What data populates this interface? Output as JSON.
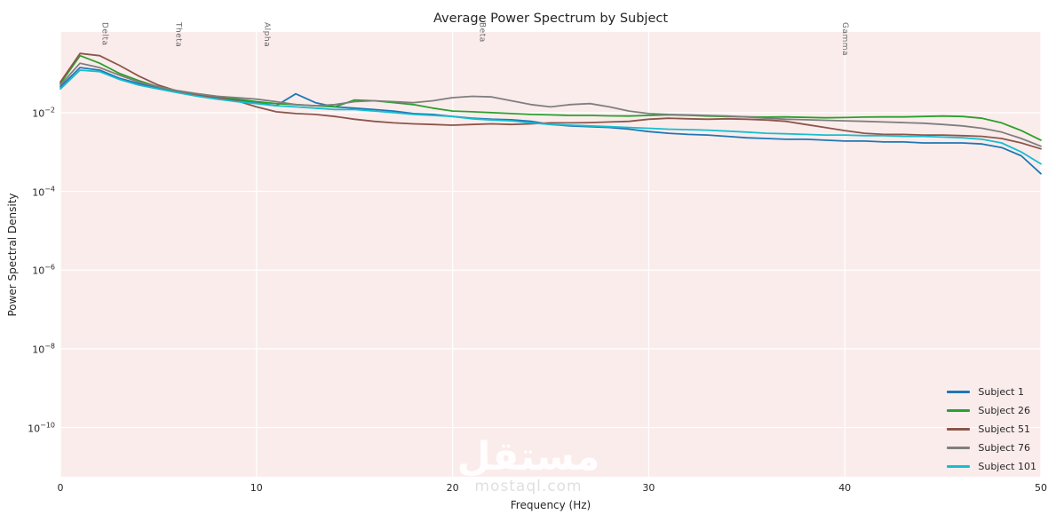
{
  "watermark": {
    "text": "مستقل",
    "subtext": "mostaql.com"
  },
  "colors": {
    "plot_bg": "#fbecec",
    "grid": "#ffffff",
    "text": "#262626",
    "annotation_text": "#666666"
  },
  "chart_data": {
    "type": "line",
    "title": "Average Power Spectrum by Subject",
    "xlabel": "Frequency (Hz)",
    "ylabel": "Power Spectral Density",
    "grid": true,
    "legend_position": "lower right",
    "xlim": [
      0,
      50
    ],
    "ylim_log10": [
      -11.25,
      0.05
    ],
    "x_ticks": [
      0,
      10,
      20,
      30,
      40,
      50
    ],
    "y_tick_exponents": [
      -2,
      -4,
      -6,
      -8,
      -10
    ],
    "band_annotations": [
      {
        "label": "Delta",
        "freq": 2.25
      },
      {
        "label": "Theta",
        "freq": 6
      },
      {
        "label": "Alpha",
        "freq": 10.5
      },
      {
        "label": "Beta",
        "freq": 21.5
      },
      {
        "label": "Gamma",
        "freq": 40
      }
    ],
    "x": [
      0,
      1,
      2,
      3,
      4,
      5,
      6,
      7,
      8,
      9,
      10,
      11,
      12,
      13,
      14,
      15,
      16,
      17,
      18,
      19,
      20,
      21,
      22,
      23,
      24,
      25,
      26,
      27,
      28,
      29,
      30,
      31,
      32,
      33,
      34,
      35,
      36,
      37,
      38,
      39,
      40,
      41,
      42,
      43,
      44,
      45,
      46,
      47,
      48,
      49,
      50
    ],
    "series": [
      {
        "name": "Subject 1",
        "color": "#1f77b4",
        "values": [
          0.045,
          0.14,
          0.12,
          0.075,
          0.055,
          0.042,
          0.033,
          0.027,
          0.024,
          0.021,
          0.018,
          0.015,
          0.03,
          0.018,
          0.014,
          0.013,
          0.012,
          0.011,
          0.0095,
          0.009,
          0.008,
          0.0072,
          0.0068,
          0.0066,
          0.006,
          0.005,
          0.0046,
          0.0044,
          0.0042,
          0.0038,
          0.0033,
          0.003,
          0.0028,
          0.0027,
          0.0025,
          0.0023,
          0.0022,
          0.0021,
          0.0021,
          0.002,
          0.0019,
          0.0019,
          0.0018,
          0.0018,
          0.0017,
          0.0017,
          0.0017,
          0.0016,
          0.0013,
          0.0008,
          0.00028
        ]
      },
      {
        "name": "Subject 26",
        "color": "#2ca02c",
        "values": [
          0.055,
          0.28,
          0.18,
          0.1,
          0.065,
          0.045,
          0.035,
          0.03,
          0.026,
          0.022,
          0.019,
          0.017,
          0.016,
          0.015,
          0.014,
          0.021,
          0.02,
          0.018,
          0.016,
          0.013,
          0.011,
          0.0105,
          0.01,
          0.0095,
          0.009,
          0.0088,
          0.0085,
          0.0085,
          0.0083,
          0.0082,
          0.0085,
          0.0088,
          0.0086,
          0.0082,
          0.008,
          0.0078,
          0.0077,
          0.0078,
          0.0076,
          0.0074,
          0.0075,
          0.0077,
          0.0078,
          0.0078,
          0.008,
          0.0082,
          0.008,
          0.0072,
          0.0055,
          0.0035,
          0.002
        ]
      },
      {
        "name": "Subject 51",
        "color": "#8c564b",
        "values": [
          0.06,
          0.32,
          0.28,
          0.16,
          0.085,
          0.05,
          0.035,
          0.028,
          0.024,
          0.02,
          0.014,
          0.0105,
          0.0095,
          0.009,
          0.008,
          0.0068,
          0.006,
          0.0055,
          0.0052,
          0.005,
          0.0048,
          0.005,
          0.0052,
          0.005,
          0.0052,
          0.0055,
          0.0055,
          0.0056,
          0.0058,
          0.006,
          0.0068,
          0.0072,
          0.007,
          0.0068,
          0.007,
          0.0068,
          0.0065,
          0.006,
          0.005,
          0.0042,
          0.0035,
          0.003,
          0.0028,
          0.0028,
          0.0027,
          0.0027,
          0.0026,
          0.0025,
          0.0022,
          0.0017,
          0.0012
        ]
      },
      {
        "name": "Subject 76",
        "color": "#7f7f7f",
        "values": [
          0.05,
          0.18,
          0.14,
          0.09,
          0.06,
          0.045,
          0.036,
          0.03,
          0.026,
          0.024,
          0.022,
          0.019,
          0.016,
          0.015,
          0.016,
          0.019,
          0.02,
          0.019,
          0.018,
          0.02,
          0.024,
          0.026,
          0.025,
          0.02,
          0.016,
          0.014,
          0.016,
          0.017,
          0.014,
          0.011,
          0.0095,
          0.009,
          0.0088,
          0.0085,
          0.0082,
          0.0078,
          0.0072,
          0.0068,
          0.0066,
          0.0064,
          0.0062,
          0.006,
          0.0058,
          0.0056,
          0.0054,
          0.005,
          0.0046,
          0.004,
          0.0032,
          0.0022,
          0.0014
        ]
      },
      {
        "name": "Subject 101",
        "color": "#17becf",
        "values": [
          0.04,
          0.12,
          0.11,
          0.07,
          0.05,
          0.04,
          0.032,
          0.026,
          0.022,
          0.019,
          0.017,
          0.015,
          0.014,
          0.013,
          0.012,
          0.012,
          0.011,
          0.01,
          0.009,
          0.0085,
          0.008,
          0.007,
          0.0065,
          0.0062,
          0.0055,
          0.005,
          0.0048,
          0.0046,
          0.0044,
          0.0042,
          0.004,
          0.0038,
          0.0037,
          0.0036,
          0.0034,
          0.0032,
          0.003,
          0.0029,
          0.0028,
          0.0027,
          0.0027,
          0.0026,
          0.0026,
          0.0025,
          0.0025,
          0.0024,
          0.0023,
          0.0021,
          0.0017,
          0.001,
          0.0005
        ]
      }
    ]
  }
}
